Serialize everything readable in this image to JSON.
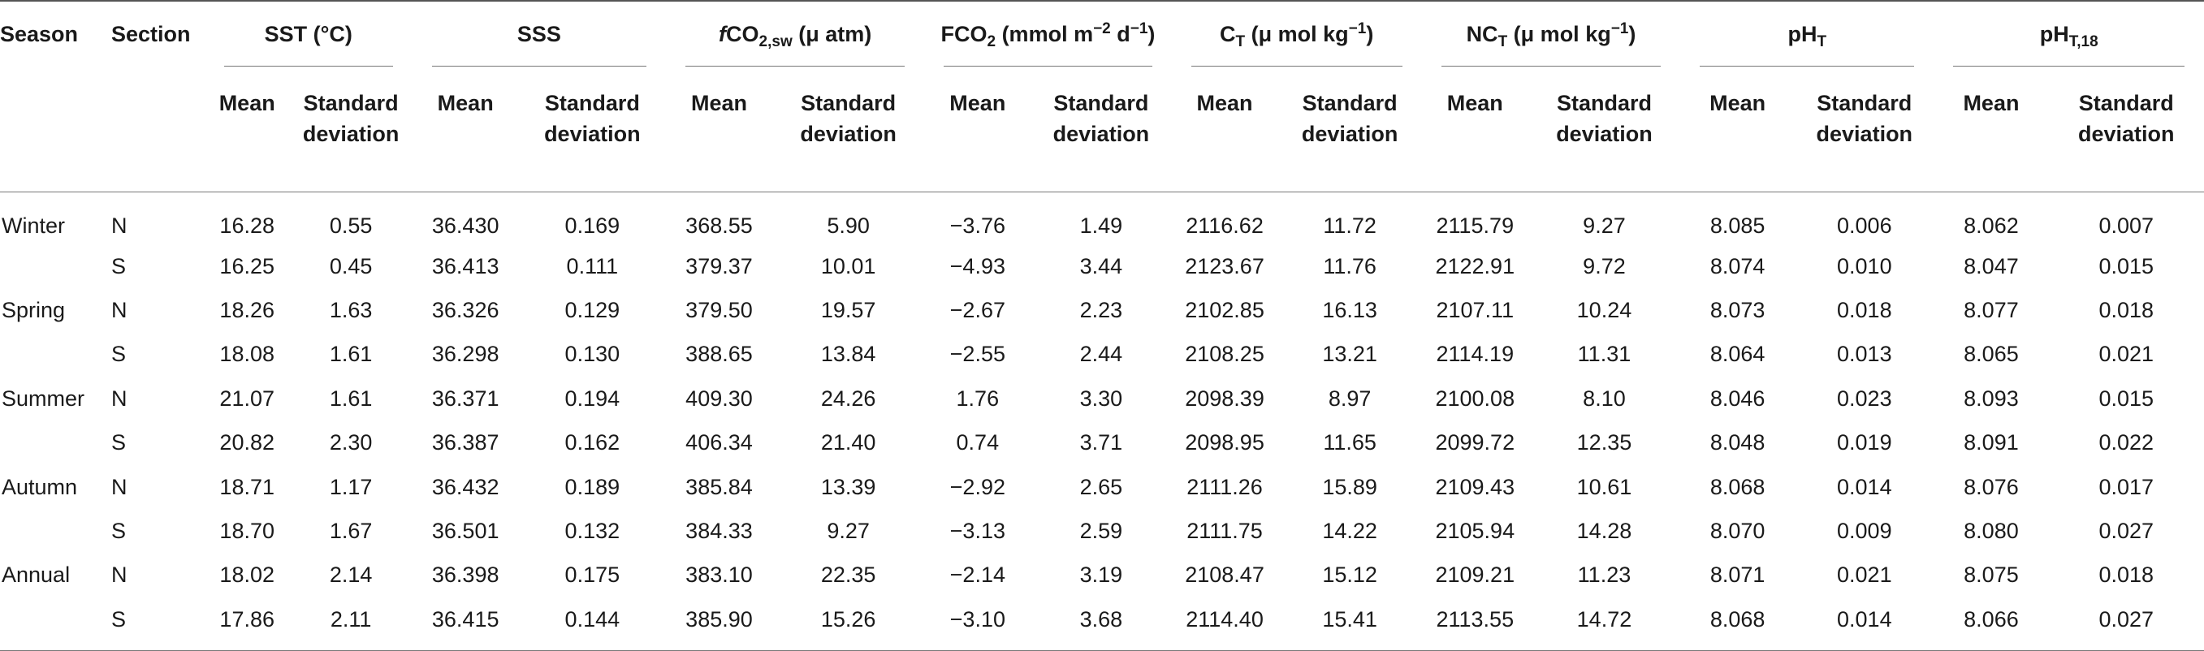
{
  "headers": {
    "season": "Season",
    "section": "Section",
    "sst": "SST (°C)",
    "sss": "SSS",
    "fco2sw": {
      "italic": "f",
      "base": "CO",
      "sub": "2,sw",
      "tail": " (μ atm)"
    },
    "fco2": {
      "base": "FCO",
      "sub": "2",
      "mid": " (mmol m",
      "sup1": "−2",
      "mid2": " d",
      "sup2": "−1",
      "tail": ")"
    },
    "ct": {
      "base": "C",
      "sub": "T",
      "mid": " (μ mol kg",
      "sup": "−1",
      "tail": ")"
    },
    "nct": {
      "base": "NC",
      "sub": "T",
      "mid": " (μ mol kg",
      "sup": "−1",
      "tail": ")"
    },
    "pht": {
      "base": "pH",
      "sub": "T"
    },
    "pht18": {
      "base": "pH",
      "sub": "T,18"
    },
    "mean": "Mean",
    "sd_line1": "Standard",
    "sd_line2": "deviation"
  },
  "rows": [
    {
      "season": "Winter",
      "section": "N",
      "values": [
        "16.28",
        "0.55",
        "36.430",
        "0.169",
        "368.55",
        "5.90",
        "−3.76",
        "1.49",
        "2116.62",
        "11.72",
        "2115.79",
        "9.27",
        "8.085",
        "0.006",
        "8.062",
        "0.007"
      ]
    },
    {
      "season": "",
      "section": "S",
      "values": [
        "16.25",
        "0.45",
        "36.413",
        "0.111",
        "379.37",
        "10.01",
        "−4.93",
        "3.44",
        "2123.67",
        "11.76",
        "2122.91",
        "9.72",
        "8.074",
        "0.010",
        "8.047",
        "0.015"
      ]
    },
    {
      "season": "Spring",
      "section": "N",
      "values": [
        "18.26",
        "1.63",
        "36.326",
        "0.129",
        "379.50",
        "19.57",
        "−2.67",
        "2.23",
        "2102.85",
        "16.13",
        "2107.11",
        "10.24",
        "8.073",
        "0.018",
        "8.077",
        "0.018"
      ]
    },
    {
      "season": "",
      "section": "S",
      "values": [
        "18.08",
        "1.61",
        "36.298",
        "0.130",
        "388.65",
        "13.84",
        "−2.55",
        "2.44",
        "2108.25",
        "13.21",
        "2114.19",
        "11.31",
        "8.064",
        "0.013",
        "8.065",
        "0.021"
      ]
    },
    {
      "season": "Summer",
      "section": "N",
      "values": [
        "21.07",
        "1.61",
        "36.371",
        "0.194",
        "409.30",
        "24.26",
        "1.76",
        "3.30",
        "2098.39",
        "8.97",
        "2100.08",
        "8.10",
        "8.046",
        "0.023",
        "8.093",
        "0.015"
      ]
    },
    {
      "season": "",
      "section": "S",
      "values": [
        "20.82",
        "2.30",
        "36.387",
        "0.162",
        "406.34",
        "21.40",
        "0.74",
        "3.71",
        "2098.95",
        "11.65",
        "2099.72",
        "12.35",
        "8.048",
        "0.019",
        "8.091",
        "0.022"
      ]
    },
    {
      "season": "Autumn",
      "section": "N",
      "values": [
        "18.71",
        "1.17",
        "36.432",
        "0.189",
        "385.84",
        "13.39",
        "−2.92",
        "2.65",
        "2111.26",
        "15.89",
        "2109.43",
        "10.61",
        "8.068",
        "0.014",
        "8.076",
        "0.017"
      ]
    },
    {
      "season": "",
      "section": "S",
      "values": [
        "18.70",
        "1.67",
        "36.501",
        "0.132",
        "384.33",
        "9.27",
        "−3.13",
        "2.59",
        "2111.75",
        "14.22",
        "2105.94",
        "14.28",
        "8.070",
        "0.009",
        "8.080",
        "0.027"
      ]
    },
    {
      "season": "Annual",
      "section": "N",
      "values": [
        "18.02",
        "2.14",
        "36.398",
        "0.175",
        "383.10",
        "22.35",
        "−2.14",
        "3.19",
        "2108.47",
        "15.12",
        "2109.21",
        "11.23",
        "8.071",
        "0.021",
        "8.075",
        "0.018"
      ]
    },
    {
      "season": "",
      "section": "S",
      "values": [
        "17.86",
        "2.11",
        "36.415",
        "0.144",
        "385.90",
        "15.26",
        "−3.10",
        "3.68",
        "2114.40",
        "15.41",
        "2113.55",
        "14.72",
        "8.068",
        "0.014",
        "8.066",
        "0.027"
      ]
    }
  ]
}
